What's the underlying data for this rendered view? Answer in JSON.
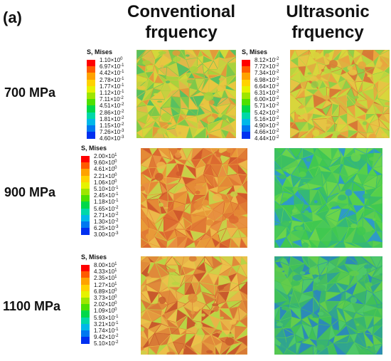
{
  "panel_label": "(a)",
  "columns": [
    {
      "title_line1": "Conventional",
      "title_line2": "frquency"
    },
    {
      "title_line1": "Ultrasonic",
      "title_line2": "frquency"
    }
  ],
  "rows": [
    {
      "label": "700 MPa"
    },
    {
      "label": "900 MPa"
    },
    {
      "label": "1100 MPa"
    }
  ],
  "legends": [
    {
      "title": "S, Mises",
      "values": [
        {
          "m": "1.10",
          "e": "0"
        },
        {
          "m": "6.97",
          "e": "-1"
        },
        {
          "m": "4.42",
          "e": "-1"
        },
        {
          "m": "2.78",
          "e": "-1"
        },
        {
          "m": "1.77",
          "e": "-1"
        },
        {
          "m": "1.12",
          "e": "-1"
        },
        {
          "m": "7.11",
          "e": "-2"
        },
        {
          "m": "4.51",
          "e": "-2"
        },
        {
          "m": "2.86",
          "e": "-2"
        },
        {
          "m": "1.81",
          "e": "-2"
        },
        {
          "m": "1.15",
          "e": "-2"
        },
        {
          "m": "7.26",
          "e": "-3"
        },
        {
          "m": "4.60",
          "e": "-3"
        }
      ]
    },
    {
      "title": "S, Mises",
      "values": [
        {
          "m": "8.12",
          "e": "-2"
        },
        {
          "m": "7.72",
          "e": "-2"
        },
        {
          "m": "7.34",
          "e": "-2"
        },
        {
          "m": "6.98",
          "e": "-2"
        },
        {
          "m": "6.64",
          "e": "-2"
        },
        {
          "m": "6.31",
          "e": "-2"
        },
        {
          "m": "6.00",
          "e": "-2"
        },
        {
          "m": "5.71",
          "e": "-2"
        },
        {
          "m": "5.42",
          "e": "-2"
        },
        {
          "m": "5.16",
          "e": "-2"
        },
        {
          "m": "4.90",
          "e": "-2"
        },
        {
          "m": "4.66",
          "e": "-2"
        },
        {
          "m": "4.44",
          "e": "-2"
        }
      ]
    },
    {
      "title": "S, Mises",
      "values": [
        {
          "m": "2.00",
          "e": "1"
        },
        {
          "m": "9.60",
          "e": "0"
        },
        {
          "m": "4.61",
          "e": "0"
        },
        {
          "m": "2.21",
          "e": "0"
        },
        {
          "m": "1.06",
          "e": "0"
        },
        {
          "m": "5.10",
          "e": "-1"
        },
        {
          "m": "2.45",
          "e": "-1"
        },
        {
          "m": "1.18",
          "e": "-1"
        },
        {
          "m": "5.65",
          "e": "-2"
        },
        {
          "m": "2.71",
          "e": "-2"
        },
        {
          "m": "1.30",
          "e": "-2"
        },
        {
          "m": "6.25",
          "e": "-3"
        },
        {
          "m": "3.00",
          "e": "-3"
        }
      ]
    },
    {
      "title": "S, Mises",
      "values": [
        {
          "m": "8.00",
          "e": "1"
        },
        {
          "m": "4.33",
          "e": "1"
        },
        {
          "m": "2.35",
          "e": "1"
        },
        {
          "m": "1.27",
          "e": "1"
        },
        {
          "m": "6.89",
          "e": "0"
        },
        {
          "m": "3.73",
          "e": "0"
        },
        {
          "m": "2.02",
          "e": "0"
        },
        {
          "m": "1.09",
          "e": "0"
        },
        {
          "m": "5.93",
          "e": "-1"
        },
        {
          "m": "3.21",
          "e": "-1"
        },
        {
          "m": "1.74",
          "e": "-1"
        },
        {
          "m": "9.42",
          "e": "-2"
        },
        {
          "m": "5.10",
          "e": "-2"
        }
      ]
    }
  ],
  "colormap": [
    "#ff0000",
    "#ff5a00",
    "#ffa200",
    "#ffd200",
    "#e6f200",
    "#9ee600",
    "#4ee000",
    "#00d84a",
    "#00d8a8",
    "#00b8e8",
    "#0078f0",
    "#0030f0",
    "#0000d0"
  ],
  "maps": [
    {
      "row": "700 MPa",
      "column": "Conventional",
      "palette": [
        "#7ec84a",
        "#a8d23c",
        "#d2d83a",
        "#e8c640",
        "#e29a3a",
        "#58c060",
        "#c6d040",
        "#e0b848"
      ]
    },
    {
      "row": "700 MPa",
      "column": "Ultrasonic",
      "palette": [
        "#b8d640",
        "#d8d63c",
        "#e6c444",
        "#e8a63e",
        "#d87a36",
        "#90ce48",
        "#c8d83e",
        "#e0b040"
      ]
    },
    {
      "row": "900 MPa",
      "column": "Conventional",
      "palette": [
        "#e07a34",
        "#e89a38",
        "#d05a2c",
        "#ecb84a",
        "#e48a36",
        "#c8d048",
        "#e89040",
        "#dc6a30"
      ]
    },
    {
      "row": "900 MPa",
      "column": "Ultrasonic",
      "palette": [
        "#40c850",
        "#56d04a",
        "#3cc060",
        "#6ad44c",
        "#48c858",
        "#34b878",
        "#5ccc50",
        "#2e9ac8"
      ]
    },
    {
      "row": "1100 MPa",
      "column": "Conventional",
      "palette": [
        "#e49a3e",
        "#e8b448",
        "#d87a36",
        "#cfd048",
        "#e08a3a",
        "#b8d444",
        "#ecc04a",
        "#c85a2c"
      ]
    },
    {
      "row": "1100 MPa",
      "column": "Ultrasonic",
      "palette": [
        "#40c058",
        "#56c850",
        "#38b470",
        "#4ec868",
        "#30a490",
        "#62cc4c",
        "#44bc60",
        "#2c8ab8"
      ]
    }
  ]
}
